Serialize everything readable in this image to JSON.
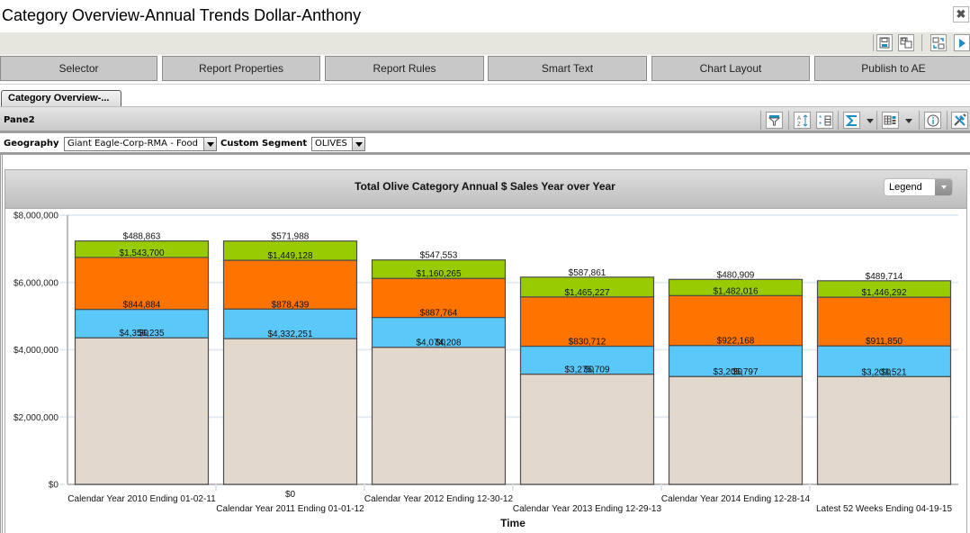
{
  "window": {
    "title": "Category Overview-Annual Trends Dollar-Anthony",
    "close_symbol": "✖"
  },
  "topbar_icons": [
    {
      "name": "save-icon"
    },
    {
      "name": "save-as-icon"
    },
    {
      "name": "export-icon"
    },
    {
      "name": "play-icon"
    }
  ],
  "nav_buttons": [
    {
      "label": "Selector"
    },
    {
      "label": "Report Properties"
    },
    {
      "label": "Report Rules"
    },
    {
      "label": "Smart Text"
    },
    {
      "label": "Chart Layout"
    },
    {
      "label": "Publish to AE"
    }
  ],
  "tabs": [
    {
      "label": "Category Overview-...",
      "active": true
    }
  ],
  "pane": {
    "title": "Pane2",
    "icons": [
      "filter-icon",
      "sort-icon",
      "column-select-icon",
      "sum-icon",
      "grid-layout-icon",
      "info-icon",
      "tools-icon"
    ]
  },
  "filters": {
    "geography": {
      "label": "Geography",
      "value": "Giant Eagle-Corp-RMA - Food"
    },
    "segment": {
      "label": "Custom Segment",
      "value": "OLIVES"
    }
  },
  "chart_panel": {
    "legend_label": "Legend"
  },
  "chart_data": {
    "type": "bar",
    "stacked": true,
    "title": "Total Olive Category Annual $ Sales Year over Year",
    "xlabel": "Time",
    "ylabel": "",
    "ylim": [
      0,
      8000000
    ],
    "yticks": [
      0,
      2000000,
      4000000,
      6000000,
      8000000
    ],
    "ytick_labels": [
      "$0",
      "$2,000,000",
      "$4,000,000",
      "$6,000,000",
      "$8,000,000"
    ],
    "grid": true,
    "legend": "collapsed",
    "categories": [
      "Calendar Year 2010 Ending 01-02-11",
      "Calendar Year 2011 Ending 01-01-12",
      "Calendar Year 2012 Ending 12-30-12",
      "Calendar Year 2013 Ending 12-29-13",
      "Calendar Year 2014 Ending 12-28-14",
      "Latest 52 Weeks Ending 04-19-15"
    ],
    "series": [
      {
        "color": "#e3d8cc",
        "values": [
          4356235,
          4332251,
          4074208,
          3275709,
          3205797,
          3203521
        ]
      },
      {
        "color": "#5bc8fa",
        "values": [
          844884,
          878439,
          887764,
          830712,
          922168,
          911850
        ]
      },
      {
        "color": "#ff7300",
        "values": [
          1543700,
          1449128,
          1160265,
          1465227,
          1482016,
          1446292
        ]
      },
      {
        "color": "#99cc00",
        "values": [
          488863,
          571988,
          547553,
          587861,
          480909,
          489714
        ]
      },
      {
        "color": "#000000",
        "values": [
          0,
          0,
          0,
          0,
          0,
          0
        ]
      }
    ]
  }
}
